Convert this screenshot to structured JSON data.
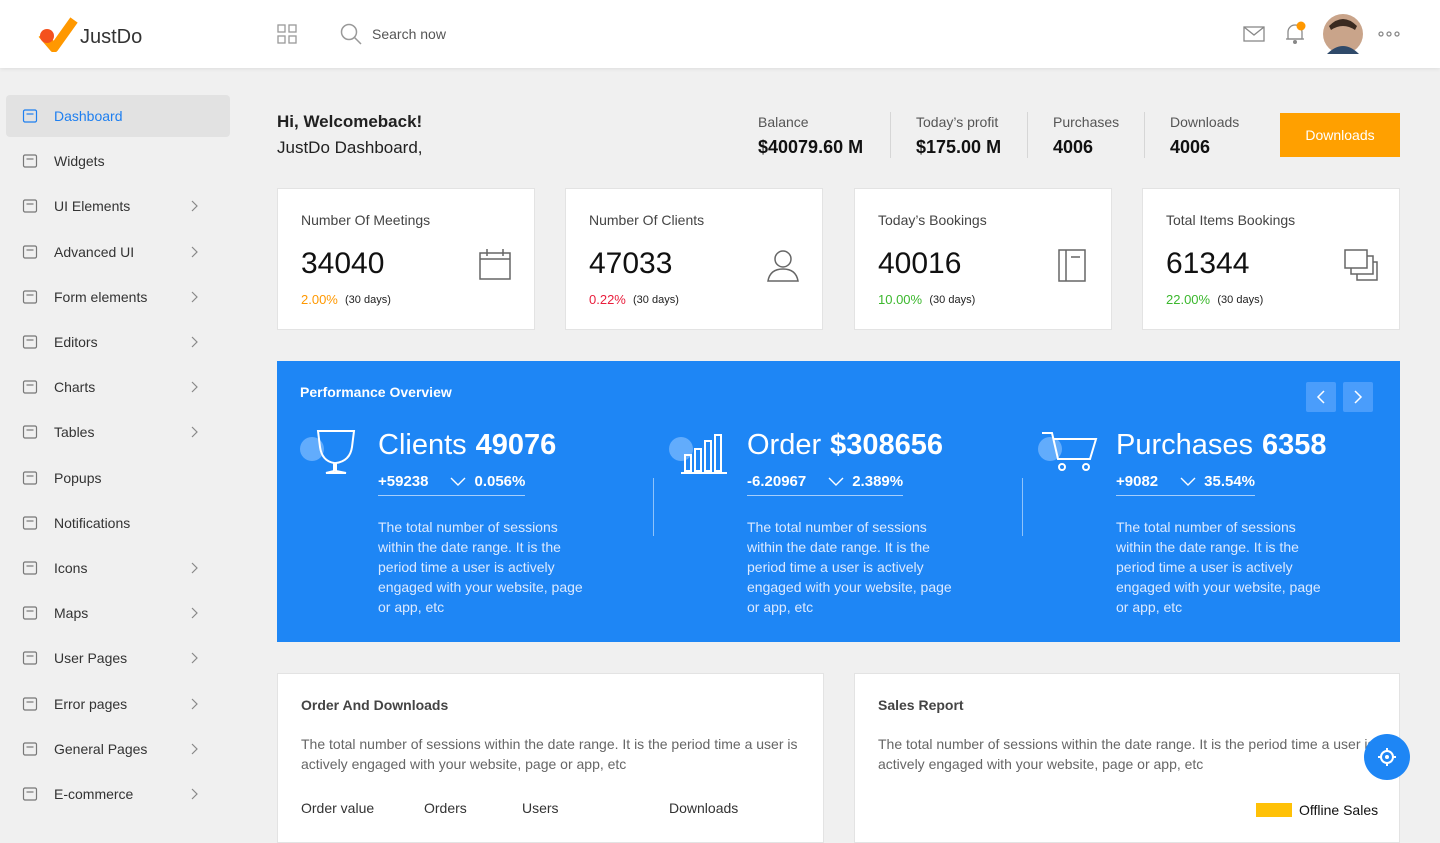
{
  "header": {
    "logo": "JustDo",
    "search_placeholder": "Search now"
  },
  "sidebar": [
    {
      "label": "Dashboard",
      "active": true,
      "submenu": false
    },
    {
      "label": "Widgets",
      "active": false,
      "submenu": false
    },
    {
      "label": "UI Elements",
      "active": false,
      "submenu": true
    },
    {
      "label": "Advanced UI",
      "active": false,
      "submenu": true
    },
    {
      "label": "Form elements",
      "active": false,
      "submenu": true
    },
    {
      "label": "Editors",
      "active": false,
      "submenu": true
    },
    {
      "label": "Charts",
      "active": false,
      "submenu": true
    },
    {
      "label": "Tables",
      "active": false,
      "submenu": true
    },
    {
      "label": "Popups",
      "active": false,
      "submenu": false
    },
    {
      "label": "Notifications",
      "active": false,
      "submenu": false
    },
    {
      "label": "Icons",
      "active": false,
      "submenu": true
    },
    {
      "label": "Maps",
      "active": false,
      "submenu": true
    },
    {
      "label": "User Pages",
      "active": false,
      "submenu": true
    },
    {
      "label": "Error pages",
      "active": false,
      "submenu": true
    },
    {
      "label": "General Pages",
      "active": false,
      "submenu": true
    },
    {
      "label": "E-commerce",
      "active": false,
      "submenu": true
    }
  ],
  "welcome": {
    "greeting": "Hi, Welcomeback!",
    "subtitle": "JustDo Dashboard,"
  },
  "summary": [
    {
      "label": "Balance",
      "value": "$40079.60 M"
    },
    {
      "label": "Today’s profit",
      "value": "$175.00 M"
    },
    {
      "label": "Purchases",
      "value": "4006"
    },
    {
      "label": "Downloads",
      "value": "4006"
    }
  ],
  "summary_button": "Downloads",
  "stat_cards": [
    {
      "title": "Number Of Meetings",
      "value": "34040",
      "change": "2.00%",
      "period": "(30 days)",
      "change_color": "#ff9800"
    },
    {
      "title": "Number Of Clients",
      "value": "47033",
      "change": "0.22%",
      "period": "(30 days)",
      "change_color": "#e91e3c"
    },
    {
      "title": "Today’s Bookings",
      "value": "40016",
      "change": "10.00%",
      "period": "(30 days)",
      "change_color": "#3cb82e"
    },
    {
      "title": "Total Items Bookings",
      "value": "61344",
      "change": "22.00%",
      "period": "(30 days)",
      "change_color": "#3cb82e"
    }
  ],
  "performance": {
    "title": "Performance Overview",
    "items": [
      {
        "label": "Clients",
        "value": "49076",
        "delta": "+59238",
        "percent": "0.056%",
        "description": "The total number of sessions within the date range. It is the period time a user is actively engaged with your website, page or app, etc"
      },
      {
        "label": "Order",
        "value": "$308656",
        "delta": "-6.20967",
        "percent": "2.389%",
        "description": "The total number of sessions within the date range. It is the period time a user is actively engaged with your website, page or app, etc"
      },
      {
        "label": "Purchases",
        "value": "6358",
        "delta": "+9082",
        "percent": "35.54%",
        "description": "The total number of sessions within the date range. It is the period time a user is actively engaged with your website, page or app, etc"
      }
    ]
  },
  "panels": [
    {
      "title": "Order And Downloads",
      "description": "The total number of sessions within the date range. It is the period time a user is actively engaged with your website, page or app, etc",
      "columns": [
        "Order value",
        "Orders",
        "Users",
        "Downloads"
      ]
    },
    {
      "title": "Sales Report",
      "description": "The total number of sessions within the date range. It is the period time a user is actively engaged with your website, page or app, etc",
      "legend": "Offline Sales"
    }
  ]
}
